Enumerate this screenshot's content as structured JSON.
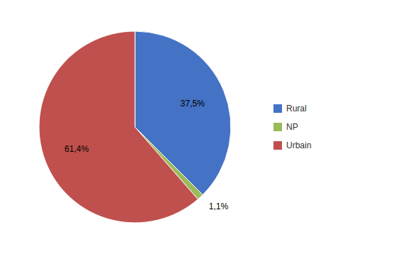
{
  "chart_data": {
    "type": "pie",
    "categories": [
      "Rural",
      "NP",
      "Urbain"
    ],
    "values": [
      37.5,
      1.1,
      61.4
    ],
    "value_labels": [
      "37,5%",
      "1,1%",
      "61,4%"
    ],
    "colors": [
      "#4472C4",
      "#9BBB59",
      "#C0504D"
    ],
    "data_labels": true,
    "legend": "right"
  }
}
